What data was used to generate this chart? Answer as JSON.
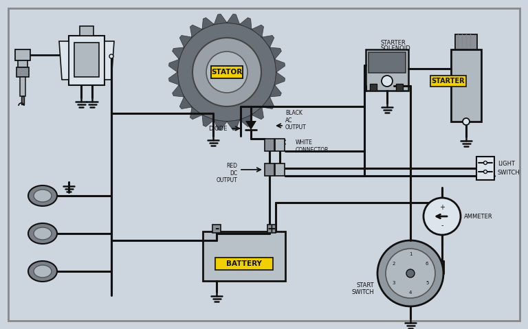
{
  "bg_color": "#cdd5de",
  "border_color": "#666666",
  "line_color": "#111111",
  "wire_color": "#111111",
  "comp_fill": "#dce4ec",
  "comp_dark": "#8a9098",
  "comp_mid": "#b0b8c0",
  "yellow_fill": "#f0d000",
  "black_text": "#111111",
  "fig_w": 7.68,
  "fig_h": 4.79,
  "labels": {
    "stator": "STATOR",
    "battery": "BATTERY",
    "starter": "STARTER",
    "starter_solenoid_line1": "STARTER",
    "starter_solenoid_line2": "SOLENOID",
    "diode": "DIODE",
    "black_ac_line1": "BLACK",
    "black_ac_line2": "AC",
    "black_ac_line3": "OUTPUT",
    "white_conn_line1": "WHITE",
    "white_conn_line2": "CONNECTOR",
    "red_dc_line1": "RED",
    "red_dc_line2": "DC",
    "red_dc_line3": "OUTPUT",
    "light_switch_line1": "LIGHT",
    "light_switch_line2": "SWITCH",
    "ammeter": "AMMETER",
    "start_switch_line1": "START",
    "start_switch_line2": "SWITCH"
  }
}
